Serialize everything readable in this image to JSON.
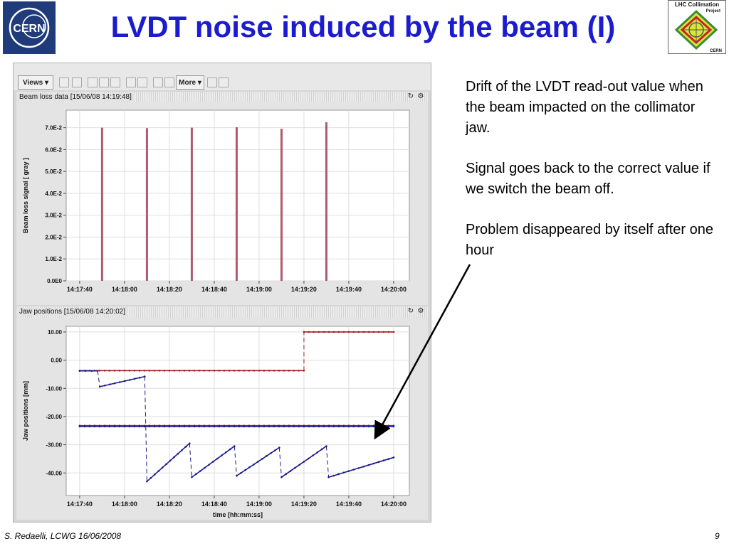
{
  "slide": {
    "title": "LVDT noise induced by the beam (I)",
    "footer_left": "S. Redaelli, LCWG 16/06/2008",
    "page_number": "9",
    "logos": {
      "cern": "CERN",
      "lhc_line1": "LHC Collimation",
      "lhc_line2": "Project",
      "lhc_line3": "CERN"
    }
  },
  "toolbar": {
    "views_label": "Views",
    "more_label": "More"
  },
  "panels": [
    {
      "header": "Beam loss data  [15/06/08 14:19:48]"
    },
    {
      "header": "Jaw positions  [15/06/08 14:20:02]"
    }
  ],
  "notes": [
    "Drift of the LVDT read-out value when the beam impacted on the collimator jaw.",
    "Signal goes back to the correct value if we switch the beam off.",
    "Problem disappeared by itself after one hour"
  ],
  "colors": {
    "title": "#1c1ccf",
    "loss_bars": "#b05a6a",
    "jaw_red": "#a02020",
    "jaw_blue": "#1a1a8c"
  },
  "chart_data": [
    {
      "type": "bar",
      "title": "Beam loss data  [15/06/08 14:19:48]",
      "xlabel": "",
      "ylabel": "Beam loss signal [ gray ]",
      "x_ticks": [
        "14:17:40",
        "14:18:00",
        "14:18:20",
        "14:18:40",
        "14:19:00",
        "14:19:20",
        "14:19:40",
        "14:20:00"
      ],
      "y_ticks": [
        "0.0E0",
        "1.0E-2",
        "2.0E-2",
        "3.0E-2",
        "4.0E-2",
        "5.0E-2",
        "6.0E-2",
        "7.0E-2"
      ],
      "ylim": [
        0,
        0.078
      ],
      "xlim_seconds_after_14:17:40": [
        -6,
        147
      ],
      "series": [
        {
          "x": [
            "14:17:50",
            "14:18:10",
            "14:18:30",
            "14:18:50",
            "14:19:10",
            "14:19:30"
          ],
          "values": [
            0.07,
            0.0698,
            0.07,
            0.0702,
            0.0695,
            0.0725
          ]
        }
      ]
    },
    {
      "type": "line",
      "title": "Jaw positions  [15/06/08 14:20:02]",
      "xlabel": "time [hh:mm:ss]",
      "ylabel": "Jaw positions [mm]",
      "x_ticks": [
        "14:17:40",
        "14:18:00",
        "14:18:20",
        "14:18:40",
        "14:19:00",
        "14:19:20",
        "14:19:40",
        "14:20:00"
      ],
      "y_ticks": [
        "10.00",
        "0.00",
        "-10.00",
        "-20.00",
        "-30.00",
        "-40.00"
      ],
      "ylim": [
        -48,
        12
      ],
      "series": [
        {
          "color": "red",
          "x": [
            "14:17:40",
            "14:19:20",
            "14:19:20",
            "14:20:00"
          ],
          "values": [
            -3.7,
            -3.7,
            10.0,
            10.0
          ]
        },
        {
          "color": "red",
          "x": [
            "14:17:40",
            "14:20:00"
          ],
          "values": [
            -23.2,
            -23.2
          ]
        },
        {
          "color": "blue",
          "x": [
            "14:17:40",
            "14:18:00",
            "14:18:20",
            "14:18:40",
            "14:19:00",
            "14:19:20",
            "14:19:40",
            "14:20:00"
          ],
          "values": [
            -23.5,
            -23.5,
            -23.5,
            -23.5,
            -23.5,
            -23.5,
            -23.5,
            -23.5
          ]
        },
        {
          "color": "blue",
          "x": [
            "14:17:40",
            "14:17:48",
            "14:17:49",
            "14:18:09",
            "14:18:10",
            "14:18:29",
            "14:18:30",
            "14:18:49",
            "14:18:50",
            "14:19:09",
            "14:19:10",
            "14:19:30",
            "14:19:31",
            "14:20:00"
          ],
          "values": [
            -3.8,
            -3.8,
            -9.4,
            -5.8,
            -43.0,
            -29.5,
            -41.5,
            -30.5,
            -41.0,
            -31.0,
            -41.5,
            -30.5,
            -41.5,
            -34.5
          ]
        }
      ]
    }
  ]
}
